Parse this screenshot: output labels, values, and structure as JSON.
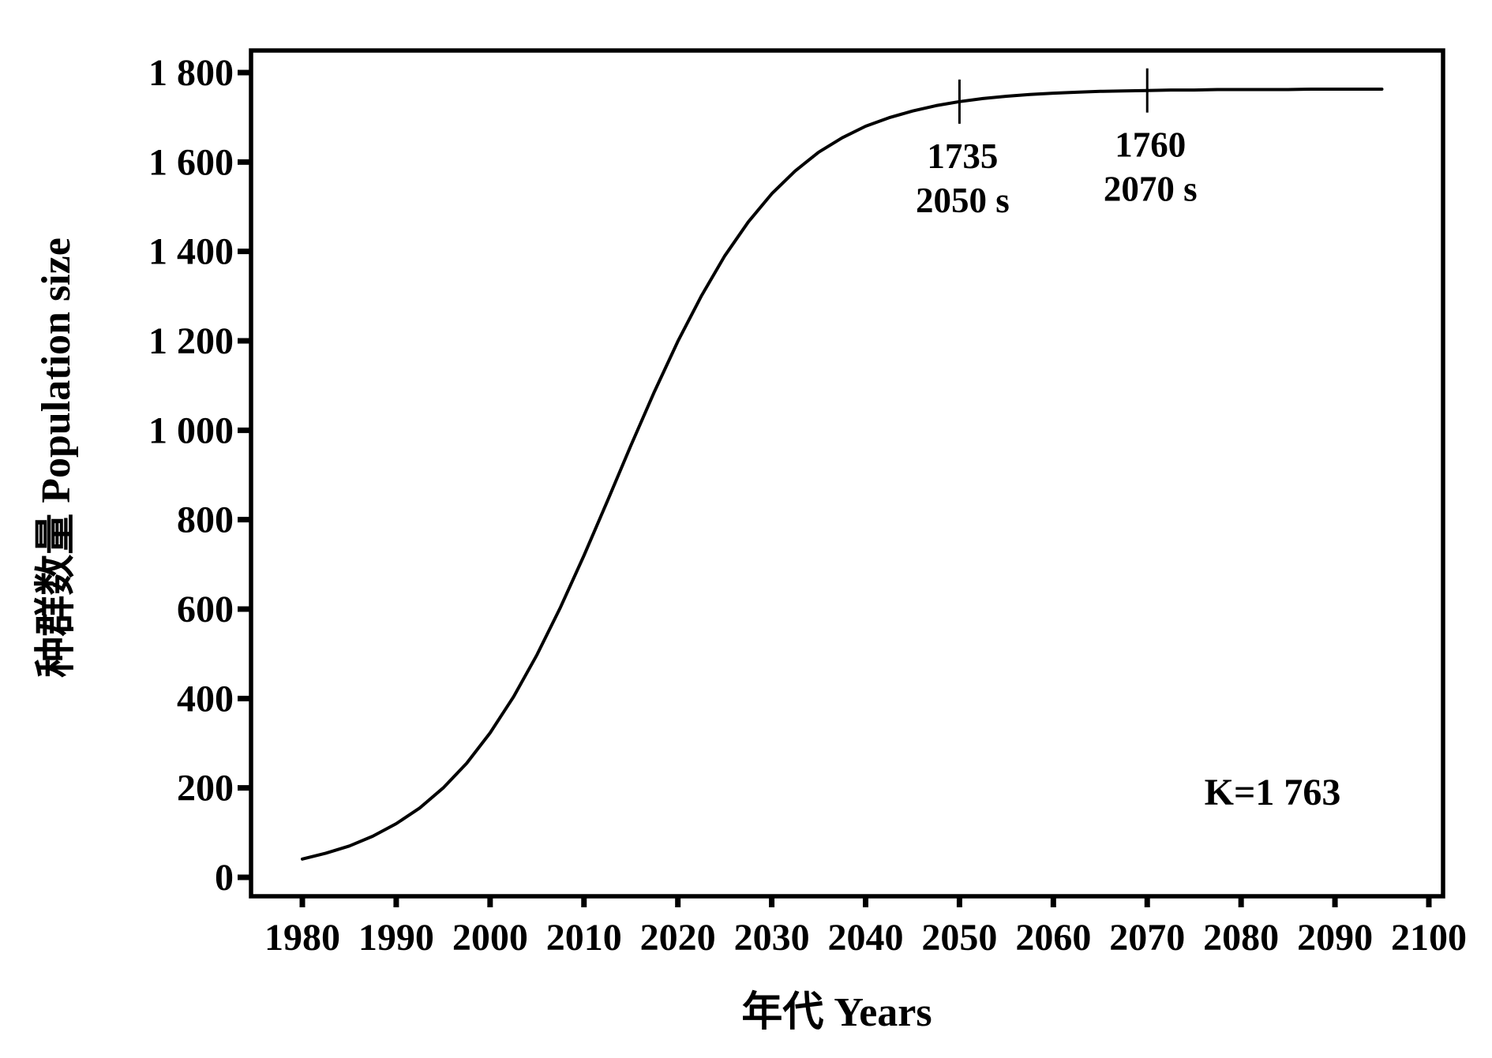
{
  "chart_data": {
    "type": "line",
    "title": "",
    "xlabel": "年代 Years",
    "ylabel": "种群数量 Population size",
    "grid": false,
    "legend": "none",
    "xlim": [
      1974.5,
      2101.5
    ],
    "ylim": [
      -45,
      1850
    ],
    "x_ticks": [
      1980,
      1990,
      2000,
      2010,
      2020,
      2030,
      2040,
      2050,
      2060,
      2070,
      2080,
      2090,
      2100
    ],
    "x_tick_labels": [
      "1980",
      "1990",
      "2000",
      "2010",
      "2020",
      "2030",
      "2040",
      "2050",
      "2060",
      "2070",
      "2080",
      "2090",
      "2100"
    ],
    "y_ticks": [
      0,
      200,
      400,
      600,
      800,
      1000,
      1200,
      1400,
      1600,
      1800
    ],
    "y_tick_labels": [
      "0",
      "200",
      "400",
      "600",
      "800",
      "1 000",
      "1 200",
      "1 400",
      "1 600",
      "1 800"
    ],
    "series": [
      {
        "points": [
          [
            1980,
            41
          ],
          [
            1982.5,
            54
          ],
          [
            1985,
            70
          ],
          [
            1987.5,
            92
          ],
          [
            1990,
            120
          ],
          [
            1992.5,
            155
          ],
          [
            1995,
            200
          ],
          [
            1997.5,
            255
          ],
          [
            2000,
            323
          ],
          [
            2002.5,
            404
          ],
          [
            2005,
            498
          ],
          [
            2007.5,
            604
          ],
          [
            2010,
            720
          ],
          [
            2012.5,
            842
          ],
          [
            2015,
            966
          ],
          [
            2017.5,
            1086
          ],
          [
            2020,
            1199
          ],
          [
            2022.5,
            1300
          ],
          [
            2025,
            1390
          ],
          [
            2027.5,
            1466
          ],
          [
            2030,
            1529
          ],
          [
            2032.5,
            1580
          ],
          [
            2035,
            1622
          ],
          [
            2037.5,
            1654
          ],
          [
            2040,
            1680
          ],
          [
            2042.5,
            1699
          ],
          [
            2045,
            1714
          ],
          [
            2047.5,
            1726
          ],
          [
            2050,
            1735
          ],
          [
            2052.5,
            1742
          ],
          [
            2055,
            1747
          ],
          [
            2057.5,
            1751
          ],
          [
            2060,
            1754
          ],
          [
            2062.5,
            1756
          ],
          [
            2065,
            1758
          ],
          [
            2067.5,
            1759
          ],
          [
            2070,
            1760
          ],
          [
            2072.5,
            1761
          ],
          [
            2075,
            1761
          ],
          [
            2077.5,
            1762
          ],
          [
            2080,
            1762
          ],
          [
            2082.5,
            1762
          ],
          [
            2085,
            1762
          ],
          [
            2087.5,
            1763
          ],
          [
            2090,
            1763
          ],
          [
            2092.5,
            1763
          ],
          [
            2095,
            1763
          ]
        ]
      }
    ],
    "annotations": [
      {
        "year": 2050,
        "value": 1735,
        "label_value": "1735",
        "label_period": "2050 s"
      },
      {
        "year": 2070,
        "value": 1760,
        "label_value": "1760",
        "label_period": "2070 s"
      }
    ],
    "carrying_capacity": 1763,
    "k_label": "K=1 763"
  },
  "colors": {
    "axis": "#000000",
    "curve": "#000000",
    "text": "#000000",
    "background": "#ffffff"
  }
}
